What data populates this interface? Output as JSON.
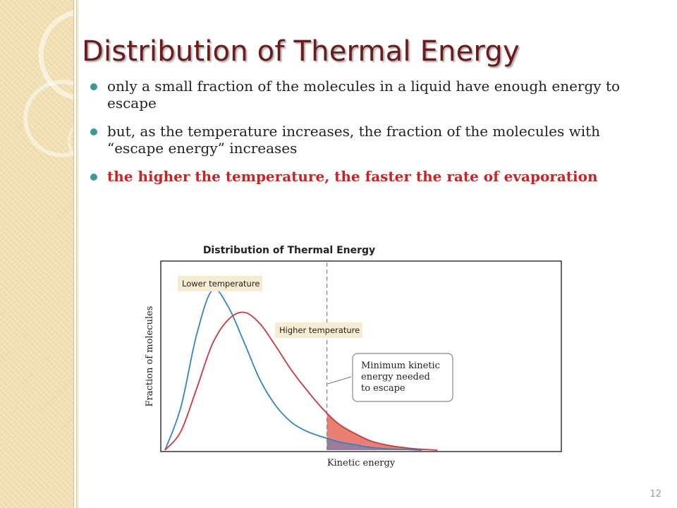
{
  "slide": {
    "title": "Distribution of Thermal Energy",
    "bullets": [
      "only a small fraction of the molecules in a liquid have enough energy to escape",
      "but, as the temperature increases, the fraction of the molecules with “escape energy” increases",
      "the higher the temperature, the faster the rate of evaporation"
    ],
    "page_number": "12"
  },
  "colors": {
    "title": "#6e1a1a",
    "emphasis_text": "#d21f1f",
    "bullet_dot": "#3a9a9a",
    "lower_curve": "#2f86c4",
    "higher_curve": "#c9383f",
    "escape_fill": "#e8675a",
    "overlap_fill": "#8a7aa8",
    "label_box": "#f5ecd1"
  },
  "chart_data": {
    "type": "line",
    "title": "Distribution of Thermal Energy",
    "xlabel": "Kinetic energy",
    "ylabel": "Fraction of molecules",
    "xlim": [
      0,
      10
    ],
    "ylim": [
      0,
      1
    ],
    "grid": false,
    "escape_threshold": 4.1,
    "series": [
      {
        "name": "Lower temperature",
        "x": [
          0,
          0.4,
          0.8,
          1.2,
          1.6,
          2.0,
          2.4,
          2.8,
          3.2,
          3.6,
          4.0,
          4.4,
          4.8,
          5.2,
          5.6,
          6.0,
          6.5
        ],
        "values": [
          0,
          0.23,
          0.62,
          0.86,
          0.77,
          0.58,
          0.38,
          0.24,
          0.15,
          0.1,
          0.07,
          0.045,
          0.03,
          0.015,
          0.008,
          0.004,
          0
        ]
      },
      {
        "name": "Higher temperature",
        "x": [
          0,
          0.4,
          0.8,
          1.2,
          1.6,
          2.0,
          2.4,
          2.8,
          3.2,
          3.6,
          4.0,
          4.4,
          4.8,
          5.2,
          5.6,
          6.0,
          6.4,
          6.9
        ],
        "values": [
          0,
          0.1,
          0.33,
          0.57,
          0.7,
          0.74,
          0.68,
          0.56,
          0.43,
          0.32,
          0.22,
          0.14,
          0.09,
          0.05,
          0.028,
          0.015,
          0.006,
          0
        ]
      }
    ],
    "annotations": [
      "Lower temperature",
      "Higher temperature",
      "Minimum kinetic energy needed to escape"
    ],
    "escape_callout_lines": [
      "Minimum kinetic",
      "energy needed",
      "to escape"
    ]
  }
}
